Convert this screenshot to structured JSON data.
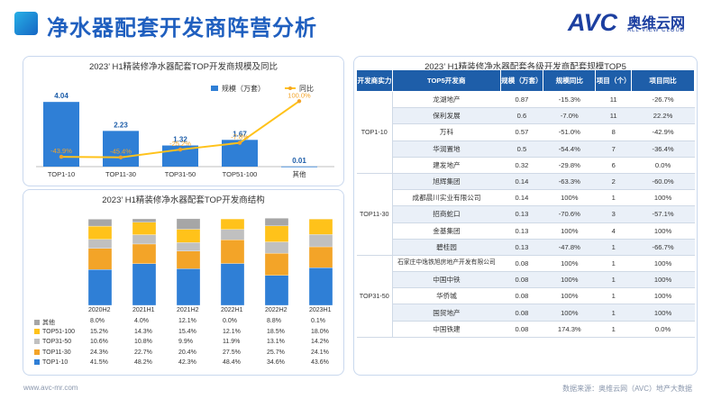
{
  "header": {
    "title": "净水器配套开发商阵营分析"
  },
  "logo": {
    "brand": "AVC",
    "name_cn": "奥维云网",
    "name_en": "ALL VIEW CLOUD"
  },
  "colors": {
    "blue": "#2f7fd6",
    "orange": "#f3a428",
    "gray": "#a6a6a6",
    "yellow": "#ffc21a",
    "lightblue": "#5aa8e8",
    "brand": "#1f5fbf"
  },
  "chart_data": [
    {
      "type": "bar",
      "title": "2023’ H1精装修净水器配套TOP开发商规模及同比",
      "categories": [
        "TOP1-10",
        "TOP11-30",
        "TOP31-50",
        "TOP51-100",
        "其他"
      ],
      "series": [
        {
          "name": "规模（万套）",
          "values": [
            4.04,
            2.23,
            1.32,
            1.67,
            0.01
          ],
          "labels": [
            "4.04",
            "2.23",
            "1.32",
            "1.67",
            "0.01"
          ]
        },
        {
          "name": "同比",
          "type": "line",
          "values": [
            -43.9,
            -45.4,
            -25.2,
            -7.8,
            100.0
          ],
          "labels": [
            "-43.9%",
            "-45.4%",
            "-25.2%",
            "-7.8%",
            "100.0%"
          ]
        }
      ]
    },
    {
      "type": "bar",
      "stacked": true,
      "title": "2023’ H1精装修净水器配套TOP开发商结构",
      "categories": [
        "2020H2",
        "2021H1",
        "2021H2",
        "2022H1",
        "2022H2",
        "2023H1"
      ],
      "series": [
        {
          "name": "其他",
          "values": [
            8.0,
            4.0,
            12.1,
            0.0,
            8.8,
            0.1
          ],
          "labels": [
            "8.0%",
            "4.0%",
            "12.1%",
            "0.0%",
            "8.8%",
            "0.1%"
          ]
        },
        {
          "name": "TOP51-100",
          "values": [
            15.2,
            14.3,
            15.4,
            12.1,
            18.5,
            18.0
          ],
          "labels": [
            "15.2%",
            "14.3%",
            "15.4%",
            "12.1%",
            "18.5%",
            "18.0%"
          ]
        },
        {
          "name": "TOP31-50",
          "values": [
            10.6,
            10.8,
            9.9,
            11.9,
            13.1,
            14.2
          ],
          "labels": [
            "10.6%",
            "10.8%",
            "9.9%",
            "11.9%",
            "13.1%",
            "14.2%"
          ]
        },
        {
          "name": "TOP11-30",
          "values": [
            24.3,
            22.7,
            20.4,
            27.5,
            25.7,
            24.1
          ],
          "labels": [
            "24.3%",
            "22.7%",
            "20.4%",
            "27.5%",
            "25.7%",
            "24.1%"
          ]
        },
        {
          "name": "TOP1-10",
          "values": [
            41.5,
            48.2,
            42.3,
            48.4,
            34.6,
            43.6
          ],
          "labels": [
            "41.5%",
            "48.2%",
            "42.3%",
            "48.4%",
            "34.6%",
            "43.6%"
          ]
        }
      ]
    }
  ],
  "right_table": {
    "title": "2023’ H1精装修净水器配套各级开发商配套规模TOP5",
    "headers": [
      "开发商实力",
      "TOP5开发商",
      "规模（万套）",
      "规模同比",
      "项目（个）",
      "项目同比"
    ],
    "tiers": [
      "TOP1-10",
      "TOP11-30",
      "TOP31-50"
    ],
    "rows": [
      [
        "龙湖地产",
        "0.87",
        "-15.3%",
        "11",
        "-26.7%"
      ],
      [
        "保利发展",
        "0.6",
        "-7.0%",
        "11",
        "22.2%"
      ],
      [
        "万科",
        "0.57",
        "-51.0%",
        "8",
        "-42.9%"
      ],
      [
        "华润置地",
        "0.5",
        "-54.4%",
        "7",
        "-36.4%"
      ],
      [
        "建发地产",
        "0.32",
        "-29.8%",
        "6",
        "0.0%"
      ],
      [
        "旭辉集团",
        "0.14",
        "-63.3%",
        "2",
        "-60.0%"
      ],
      [
        "成都晨川实业有限公司",
        "0.14",
        "100%",
        "1",
        "100%"
      ],
      [
        "招商蛇口",
        "0.13",
        "-70.6%",
        "3",
        "-57.1%"
      ],
      [
        "金基集团",
        "0.13",
        "100%",
        "4",
        "100%"
      ],
      [
        "碧桂园",
        "0.13",
        "-47.8%",
        "1",
        "-66.7%"
      ],
      [
        "石家庄中逸铁旭房地产开发有限公司",
        "0.08",
        "100%",
        "1",
        "100%"
      ],
      [
        "中国中铁",
        "0.08",
        "100%",
        "1",
        "100%"
      ],
      [
        "华侨城",
        "0.08",
        "100%",
        "1",
        "100%"
      ],
      [
        "国贸地产",
        "0.08",
        "100%",
        "1",
        "100%"
      ],
      [
        "中国铁建",
        "0.08",
        "174.3%",
        "1",
        "0.0%"
      ]
    ]
  },
  "footer": {
    "website": "www.avc-mr.com",
    "source": "数据来源：奥维云网（AVC）地产大数据"
  }
}
